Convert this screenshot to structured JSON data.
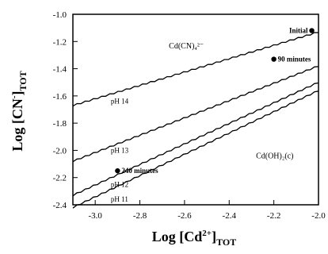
{
  "chart_data": {
    "type": "line",
    "xlabel_main": "Log [Cd",
    "xlabel_sup": "2+",
    "xlabel_close": "]",
    "xlabel_sub": "TOT",
    "ylabel_main": "Log [CN",
    "ylabel_sup": "-",
    "ylabel_close": "]",
    "ylabel_sub": "TOT",
    "xlim": [
      -3.1,
      -2.0
    ],
    "ylim": [
      -2.4,
      -1.0
    ],
    "xticks": [
      -3.0,
      -2.8,
      -2.6,
      -2.4,
      -2.2,
      -2.0
    ],
    "xtick_labels": [
      "-3.0",
      "-2.8",
      "-2.6",
      "-2.4",
      "-2.2",
      "-2.0"
    ],
    "yticks": [
      -1.0,
      -1.2,
      -1.4,
      -1.6,
      -1.8,
      -2.0,
      -2.2,
      -2.4
    ],
    "ytick_labels": [
      "-1.0",
      "-1.2",
      "-1.4",
      "-1.6",
      "-1.8",
      "-2.0",
      "-2.2",
      "-2.4"
    ],
    "series": [
      {
        "name": "pH 14",
        "label_x": -2.93,
        "label_y": -1.64,
        "x": [
          -3.1,
          -2.0
        ],
        "y": [
          -1.67,
          -1.13
        ]
      },
      {
        "name": "pH 13",
        "label_x": -2.93,
        "label_y": -2.0,
        "x": [
          -3.1,
          -2.0
        ],
        "y": [
          -2.08,
          -1.38
        ]
      },
      {
        "name": "pH 12",
        "label_x": -2.93,
        "label_y": -2.25,
        "x": [
          -3.1,
          -2.0
        ],
        "y": [
          -2.33,
          -1.5
        ]
      },
      {
        "name": "pH 11",
        "label_x": -2.93,
        "label_y": -2.36,
        "x": [
          -3.1,
          -2.0
        ],
        "y": [
          -2.42,
          -1.56
        ]
      }
    ],
    "points": [
      {
        "label": "Initial",
        "x": -2.03,
        "y": -1.12
      },
      {
        "label": "90 minutes",
        "x": -2.2,
        "y": -1.33
      },
      {
        "label": "240 minutes",
        "x": -2.9,
        "y": -2.15
      }
    ],
    "region_labels": [
      {
        "text": "Cd(CN)₄²⁻",
        "x": -2.67,
        "y": -1.25
      },
      {
        "text": "Cd(OH)₂(c)",
        "x": -2.28,
        "y": -2.06
      }
    ]
  }
}
